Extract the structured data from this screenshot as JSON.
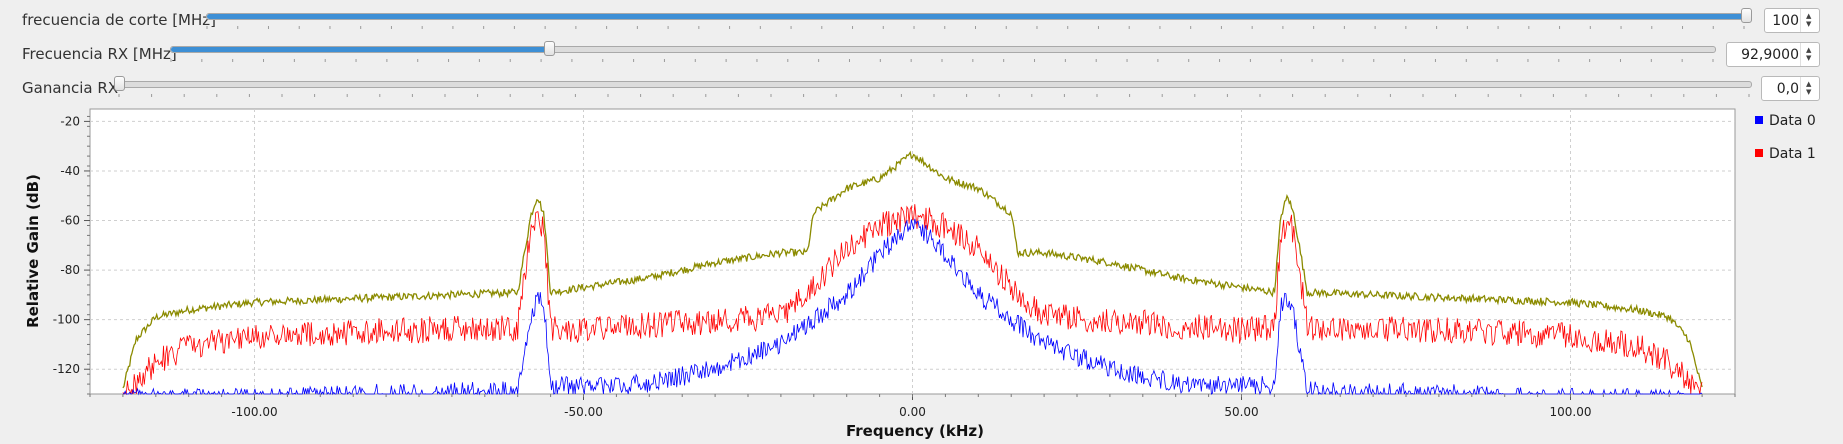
{
  "controls": [
    {
      "label": "frecuencia de corte [MHz]",
      "value": "100",
      "level": 1.0
    },
    {
      "label": "Frecuencia RX [MHz]",
      "value": "92,9000",
      "level": 0.245
    },
    {
      "label": "Ganancia RX",
      "value": "0,0",
      "level": 0.0
    }
  ],
  "legend": [
    {
      "name": "Data 0",
      "color": "#0000ff"
    },
    {
      "name": "Data 1",
      "color": "#ff0000"
    }
  ],
  "chart_data": {
    "type": "line",
    "xlabel": "Frequency (kHz)",
    "ylabel": "Relative Gain (dB)",
    "xlim": [
      -125,
      125
    ],
    "ylim": [
      -130,
      -15
    ],
    "xticks": [
      "-100.00",
      "-50.00",
      "0.00",
      "50.00",
      "100.00"
    ],
    "xtick_values": [
      -100,
      -50,
      0,
      50,
      100
    ],
    "yticks": [
      "-20",
      "-40",
      "-60",
      "-80",
      "-100",
      "-120"
    ],
    "ytick_values": [
      -20,
      -40,
      -60,
      -80,
      -100,
      -120
    ],
    "grid": true,
    "legend_placement": "right",
    "series": [
      {
        "name": "Data 0",
        "color": "#0000ff",
        "x": [
          -120,
          -110,
          -100,
          -80,
          -60,
          -58,
          -57,
          -56,
          -55,
          -50,
          -40,
          -30,
          -20,
          -10,
          -5,
          0,
          5,
          10,
          20,
          30,
          40,
          50,
          55,
          56,
          57,
          58,
          60,
          80,
          100,
          110,
          120
        ],
        "y": [
          -130,
          -130,
          -130,
          -128,
          -127,
          -98,
          -90,
          -92,
          -125,
          -125,
          -124,
          -118,
          -108,
          -88,
          -72,
          -58,
          -72,
          -88,
          -108,
          -118,
          -124,
          -125,
          -125,
          -92,
          -90,
          -98,
          -127,
          -128,
          -130,
          -130,
          -130
        ]
      },
      {
        "name": "Data 1",
        "color": "#ff0000",
        "x": [
          -120,
          -115,
          -110,
          -100,
          -80,
          -60,
          -58,
          -57,
          -56,
          -55,
          -50,
          -40,
          -30,
          -20,
          -15,
          -10,
          -5,
          0,
          5,
          10,
          15,
          20,
          30,
          40,
          50,
          55,
          56,
          57,
          58,
          60,
          80,
          100,
          110,
          115,
          120
        ],
        "y": [
          -128,
          -115,
          -108,
          -104,
          -102,
          -101,
          -62,
          -58,
          -62,
          -101,
          -102,
          -100,
          -98,
          -96,
          -85,
          -68,
          -60,
          -55,
          -60,
          -68,
          -85,
          -96,
          -98,
          -100,
          -102,
          -101,
          -62,
          -58,
          -62,
          -101,
          -102,
          -104,
          -108,
          -115,
          -128
        ]
      },
      {
        "name": "",
        "color": "#8b8b00",
        "x": [
          -120,
          -118,
          -115,
          -110,
          -100,
          -80,
          -60,
          -58,
          -57,
          -56,
          -55,
          -50,
          -40,
          -30,
          -20,
          -16,
          -15,
          -10,
          -5,
          0,
          5,
          10,
          15,
          16,
          20,
          30,
          40,
          50,
          55,
          56,
          57,
          58,
          60,
          80,
          100,
          110,
          115,
          118,
          120
        ],
        "y": [
          -128,
          -108,
          -99,
          -96,
          -93,
          -91,
          -89,
          -58,
          -50,
          -58,
          -89,
          -87,
          -83,
          -77,
          -73,
          -73,
          -57,
          -47,
          -43,
          -33,
          -43,
          -47,
          -57,
          -73,
          -73,
          -77,
          -83,
          -87,
          -89,
          -58,
          -50,
          -58,
          -89,
          -91,
          -93,
          -96,
          -99,
          -108,
          -128
        ]
      }
    ]
  }
}
